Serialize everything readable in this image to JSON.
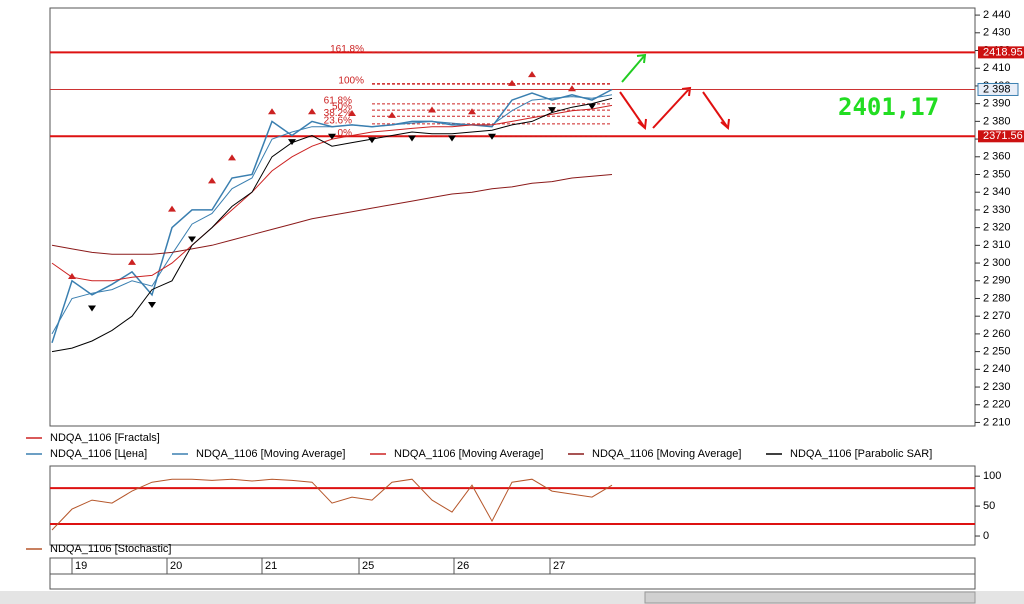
{
  "chart_data": [
    {
      "type": "line",
      "x": [
        0,
        4,
        8,
        12,
        16,
        20,
        24,
        28,
        32,
        36,
        40,
        44,
        48,
        52,
        56,
        60,
        64,
        68,
        72,
        76,
        80,
        84,
        88,
        92,
        96,
        100,
        104,
        108,
        112
      ],
      "xlim": [
        0,
        184.6
      ],
      "xticks": [
        {
          "value": 4.6,
          "label": "19"
        },
        {
          "value": 23.6,
          "label": "20"
        },
        {
          "value": 42.6,
          "label": "21"
        },
        {
          "value": 62,
          "label": "25"
        },
        {
          "value": 81,
          "label": "26"
        },
        {
          "value": 100.2,
          "label": "27"
        }
      ],
      "ylim": [
        2208,
        2444
      ],
      "yticks": [
        {
          "value": 2210,
          "label": "2 210"
        },
        {
          "value": 2220,
          "label": "2 220"
        },
        {
          "value": 2230,
          "label": "2 230"
        },
        {
          "value": 2240,
          "label": "2 240"
        },
        {
          "value": 2250,
          "label": "2 250"
        },
        {
          "value": 2260,
          "label": "2 260"
        },
        {
          "value": 2270,
          "label": "2 270"
        },
        {
          "value": 2280,
          "label": "2 280"
        },
        {
          "value": 2290,
          "label": "2 290"
        },
        {
          "value": 2300,
          "label": "2 300"
        },
        {
          "value": 2310,
          "label": "2 310"
        },
        {
          "value": 2320,
          "label": "2 320"
        },
        {
          "value": 2330,
          "label": "2 330"
        },
        {
          "value": 2340,
          "label": "2 340"
        },
        {
          "value": 2350,
          "label": "2 350"
        },
        {
          "value": 2360,
          "label": "2 360"
        },
        {
          "value": 2370,
          "label": "2 370"
        },
        {
          "value": 2380,
          "label": "2 380"
        },
        {
          "value": 2390,
          "label": "2 390"
        },
        {
          "value": 2400,
          "label": "2 400"
        },
        {
          "value": 2410,
          "label": "2 410"
        },
        {
          "value": 2420,
          "label": "2 420"
        },
        {
          "value": 2430,
          "label": "2 430"
        },
        {
          "value": 2440,
          "label": "2 440"
        }
      ],
      "series": [
        {
          "name": "NDQA_1106 [Fractals]",
          "color": "#cc2222",
          "marker": "fractal",
          "values": [
            null,
            2291,
            2276,
            null,
            2299,
            2278,
            2329,
            2315,
            2345,
            2358,
            null,
            2384,
            2370,
            2384,
            2373,
            2383,
            2371,
            2382,
            2372,
            2385,
            2372,
            2384,
            2373,
            2400,
            2405,
            2388,
            2397,
            2390,
            null
          ]
        },
        {
          "name": "NDQA_1106 [Цена]",
          "color": "#3a7fb0",
          "values": [
            2255,
            2290,
            2282,
            2288,
            2295,
            2282,
            2320,
            2330,
            2330,
            2348,
            2350,
            2380,
            2372,
            2380,
            2377,
            2378,
            2377,
            2378,
            2380,
            2380,
            2378,
            2378,
            2377,
            2392,
            2396,
            2392,
            2395,
            2392,
            2398
          ]
        },
        {
          "name": "NDQA_1106 [Moving Average]",
          "color": "#3a7fb0",
          "values": [
            2260,
            2280,
            2283,
            2285,
            2290,
            2287,
            2305,
            2322,
            2328,
            2342,
            2348,
            2370,
            2374,
            2377,
            2377,
            2378,
            2377,
            2378,
            2379,
            2380,
            2379,
            2378,
            2378,
            2386,
            2392,
            2393,
            2394,
            2393,
            2395
          ]
        },
        {
          "name": "NDQA_1106 [Moving Average]",
          "color": "#cc2222",
          "values": [
            2300,
            2292,
            2290,
            2290,
            2292,
            2293,
            2300,
            2310,
            2320,
            2330,
            2340,
            2352,
            2360,
            2366,
            2370,
            2372,
            2374,
            2375,
            2376,
            2377,
            2377,
            2378,
            2378,
            2380,
            2382,
            2384,
            2386,
            2387,
            2389
          ]
        },
        {
          "name": "NDQA_1106 [Moving Average]",
          "color": "#8b1a1a",
          "values": [
            2310,
            2308,
            2306,
            2305,
            2305,
            2305,
            2306,
            2308,
            2310,
            2313,
            2316,
            2319,
            2322,
            2325,
            2327,
            2329,
            2331,
            2333,
            2335,
            2337,
            2339,
            2340,
            2342,
            2343,
            2345,
            2346,
            2348,
            2349,
            2350
          ]
        },
        {
          "name": "NDQA_1106 [Parabolic SAR]",
          "color": "#000000",
          "values": [
            2250,
            2252,
            2256,
            2262,
            2270,
            2285,
            2290,
            2310,
            2320,
            2332,
            2340,
            2360,
            2368,
            2372,
            2366,
            2368,
            2370,
            2372,
            2374,
            2373,
            2373,
            2374,
            2375,
            2378,
            2380,
            2385,
            2388,
            2390,
            2393
          ]
        }
      ],
      "levels": [
        {
          "value": 2418.95,
          "label": "2418.95"
        },
        {
          "value": 2371.56,
          "label": "2371.56"
        }
      ],
      "price_label": {
        "value": 2398,
        "label": "2 398"
      },
      "fib_levels": [
        {
          "label": "161.8%",
          "value": 2418.95
        },
        {
          "label": "100%",
          "value": 2401.17
        },
        {
          "label": "61.8%",
          "value": 2389.86
        },
        {
          "label": "50%",
          "value": 2386.37
        },
        {
          "label": "38.2%",
          "value": 2382.87
        },
        {
          "label": "23.6%",
          "value": 2378.55
        },
        {
          "label": "0%",
          "value": 2371.56
        }
      ],
      "annotation": "2401,17"
    },
    {
      "type": "line",
      "x": [
        0,
        4,
        8,
        12,
        16,
        20,
        24,
        28,
        32,
        36,
        40,
        44,
        48,
        52,
        56,
        60,
        64,
        68,
        72,
        76,
        80,
        84,
        88,
        92,
        96,
        100,
        104,
        108,
        112
      ],
      "xlim": [
        0,
        184.6
      ],
      "ylim": [
        -15,
        117
      ],
      "yticks": [
        0,
        50,
        100
      ],
      "levels": [
        80,
        20
      ],
      "series": [
        {
          "name": "NDQA_1106 [Stochastic]",
          "color": "#b5562a",
          "values": [
            10,
            45,
            60,
            55,
            75,
            90,
            95,
            95,
            93,
            95,
            92,
            95,
            93,
            90,
            55,
            65,
            60,
            90,
            95,
            60,
            40,
            85,
            25,
            90,
            95,
            75,
            70,
            65,
            85
          ]
        }
      ]
    }
  ]
}
